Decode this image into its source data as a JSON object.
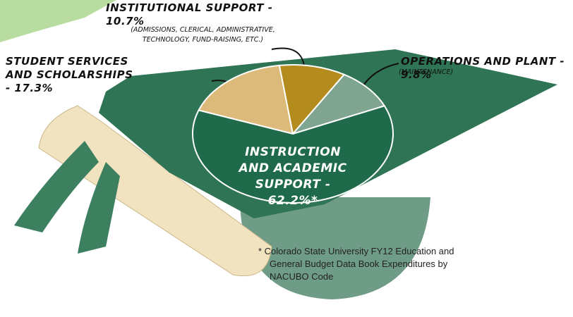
{
  "chart_data": {
    "type": "pie",
    "categories": [
      "STUDENT SERVICES AND SCHOLARSHIPS - 17.3%",
      "INSTITUTIONAL SUPPORT - 10.7%",
      "OPERATIONS AND PLANT - 9.8%",
      "INSTRUCTION AND ACADEMIC SUPPORT - 62.2%*"
    ],
    "values": [
      17.3,
      10.7,
      9.8,
      62.2
    ],
    "colors": [
      "#dcbb7a",
      "#b48c1e",
      "#7fa48f",
      "#1f6a4b"
    ],
    "annotations": [
      "(ADMISSIONS, CLERICAL, ADMINISTRATIVE, TECHNOLOGY, FUND-RAISING, ETC.)",
      "(MAINTENANCE)"
    ],
    "footnote": "* Colorado State University FY12 Education and General Budget Data Book Expenditures by NACUBO Code"
  }
}
